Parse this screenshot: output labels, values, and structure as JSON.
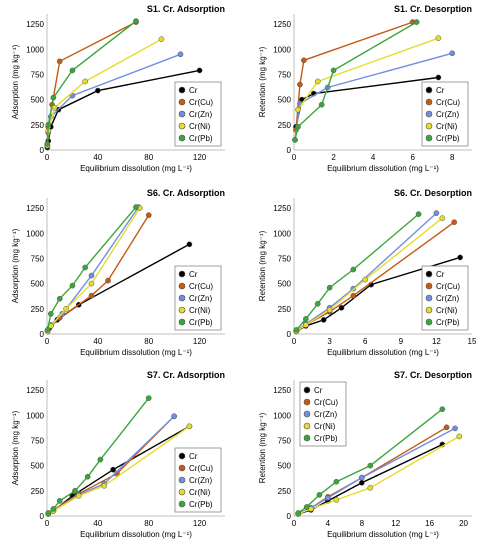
{
  "colors": {
    "Cr": "#000000",
    "Cr(Cu)": "#c55a11",
    "Cr(Zn)": "#6f8fe0",
    "Cr(Ni)": "#e6dc2a",
    "Cr(Pb)": "#3aa63a"
  },
  "chart_data": [
    {
      "type": "scatter",
      "title": "S1. Cr. Adsorption",
      "xlabel": "Equilibrium dissolution (mg L⁻¹)",
      "ylabel": "Adsorption (mg kg⁻¹)",
      "xlim": [
        0,
        140
      ],
      "ylim": [
        0,
        1350
      ],
      "xticks": [
        "0",
        "40",
        "80",
        "120"
      ],
      "yticks": [
        "0",
        "250",
        "500",
        "750",
        "1000",
        "1250"
      ],
      "legend": "inside-bottom-right",
      "series": [
        {
          "name": "Cr",
          "x": [
            0.3,
            1,
            3,
            9,
            40,
            120
          ],
          "y": [
            25,
            90,
            230,
            400,
            590,
            790
          ]
        },
        {
          "name": "Cr(Cu)",
          "x": [
            0.2,
            1,
            4,
            10,
            70
          ],
          "y": [
            50,
            230,
            450,
            880,
            1270
          ]
        },
        {
          "name": "Cr(Zn)",
          "x": [
            0.3,
            1,
            3,
            20,
            105
          ],
          "y": [
            40,
            170,
            330,
            540,
            950
          ]
        },
        {
          "name": "Cr(Ni)",
          "x": [
            0.3,
            1,
            6,
            30,
            90
          ],
          "y": [
            45,
            190,
            420,
            680,
            1100
          ]
        },
        {
          "name": "Cr(Pb)",
          "x": [
            0.2,
            1,
            5,
            20,
            70
          ],
          "y": [
            60,
            250,
            520,
            790,
            1280
          ]
        }
      ]
    },
    {
      "type": "scatter",
      "title": "S1. Cr. Desorption",
      "xlabel": "Equilibrium dissolution (mg L⁻¹)",
      "ylabel": "Retention (mg kg⁻¹)",
      "xlim": [
        0,
        9
      ],
      "ylim": [
        0,
        1350
      ],
      "xticks": [
        "0",
        "2",
        "4",
        "6",
        "8"
      ],
      "yticks": [
        "0",
        "250",
        "500",
        "750",
        "1000",
        "1250"
      ],
      "legend": "inside-bottom-right",
      "series": [
        {
          "name": "Cr",
          "x": [
            0.1,
            0.4,
            1.0,
            7.3
          ],
          "y": [
            230,
            500,
            560,
            720
          ]
        },
        {
          "name": "Cr(Cu)",
          "x": [
            0.1,
            0.3,
            0.5,
            6.0
          ],
          "y": [
            200,
            650,
            890,
            1270
          ]
        },
        {
          "name": "Cr(Zn)",
          "x": [
            0.05,
            0.3,
            1.7,
            8.0
          ],
          "y": [
            100,
            460,
            620,
            960
          ]
        },
        {
          "name": "Cr(Ni)",
          "x": [
            0.2,
            1.2,
            7.3
          ],
          "y": [
            400,
            680,
            1110
          ]
        },
        {
          "name": "Cr(Pb)",
          "x": [
            0.05,
            0.2,
            1.4,
            2.0,
            6.2
          ],
          "y": [
            100,
            230,
            450,
            790,
            1270
          ]
        }
      ]
    },
    {
      "type": "scatter",
      "title": "S6. Cr. Adsorption",
      "xlabel": "Equilibrium dissolution (mg L⁻¹)",
      "ylabel": "Adsorption (mg kg⁻¹)",
      "xlim": [
        0,
        140
      ],
      "ylim": [
        0,
        1350
      ],
      "xticks": [
        "0",
        "40",
        "80",
        "120"
      ],
      "yticks": [
        "0",
        "250",
        "500",
        "750",
        "1000",
        "1250"
      ],
      "legend": "inside-bottom-right",
      "series": [
        {
          "name": "Cr",
          "x": [
            0.5,
            2,
            8,
            25,
            112
          ],
          "y": [
            25,
            60,
            140,
            290,
            890
          ]
        },
        {
          "name": "Cr(Cu)",
          "x": [
            0.5,
            3,
            10,
            35,
            48,
            80
          ],
          "y": [
            30,
            80,
            160,
            380,
            530,
            1180
          ]
        },
        {
          "name": "Cr(Zn)",
          "x": [
            0.5,
            3,
            12,
            35,
            72
          ],
          "y": [
            30,
            90,
            200,
            580,
            1260
          ]
        },
        {
          "name": "Cr(Ni)",
          "x": [
            0.5,
            3,
            15,
            35,
            73
          ],
          "y": [
            25,
            80,
            250,
            500,
            1250
          ]
        },
        {
          "name": "Cr(Pb)",
          "x": [
            0.5,
            3,
            10,
            20,
            30,
            70
          ],
          "y": [
            40,
            200,
            350,
            480,
            660,
            1260
          ]
        }
      ]
    },
    {
      "type": "scatter",
      "title": "S6. Cr. Desorption",
      "xlabel": "Equilibrium dissolution (mg L⁻¹)",
      "ylabel": "Retention (mg kg⁻¹)",
      "xlim": [
        0,
        15
      ],
      "ylim": [
        0,
        1350
      ],
      "xticks": [
        "0",
        "3",
        "6",
        "9",
        "12",
        "15"
      ],
      "yticks": [
        "0",
        "250",
        "500",
        "750",
        "1000",
        "1250"
      ],
      "legend": "inside-bottom-right",
      "series": [
        {
          "name": "Cr",
          "x": [
            0.2,
            1.0,
            2.5,
            4.0,
            6.5,
            14.0
          ],
          "y": [
            25,
            80,
            140,
            260,
            490,
            760
          ]
        },
        {
          "name": "Cr(Cu)",
          "x": [
            0.2,
            1.0,
            3.0,
            5.0,
            13.5
          ],
          "y": [
            30,
            90,
            220,
            380,
            1110
          ]
        },
        {
          "name": "Cr(Zn)",
          "x": [
            0.2,
            1.0,
            3.0,
            5.0,
            12.0
          ],
          "y": [
            30,
            100,
            260,
            450,
            1200
          ]
        },
        {
          "name": "Cr(Ni)",
          "x": [
            0.2,
            1.0,
            3.0,
            6.0,
            12.5
          ],
          "y": [
            25,
            90,
            240,
            540,
            1150
          ]
        },
        {
          "name": "Cr(Pb)",
          "x": [
            0.2,
            1.0,
            2.0,
            3.0,
            5.0,
            10.5
          ],
          "y": [
            40,
            150,
            300,
            460,
            640,
            1190
          ]
        }
      ]
    },
    {
      "type": "scatter",
      "title": "S7. Cr. Adsorption",
      "xlabel": "Equilibrium dissolution (mg L⁻¹)",
      "ylabel": "Adsorption (mg kg⁻¹)",
      "xlim": [
        0,
        140
      ],
      "ylim": [
        0,
        1350
      ],
      "xticks": [
        "0",
        "40",
        "80",
        "120"
      ],
      "yticks": [
        "0",
        "250",
        "500",
        "750",
        "1000",
        "1250"
      ],
      "legend": "inside-bottom-right",
      "series": [
        {
          "name": "Cr",
          "x": [
            1,
            5,
            20,
            52,
            112
          ],
          "y": [
            20,
            50,
            200,
            460,
            890
          ]
        },
        {
          "name": "Cr(Cu)",
          "x": [
            1,
            5,
            25,
            55,
            100
          ],
          "y": [
            20,
            60,
            220,
            420,
            990
          ]
        },
        {
          "name": "Cr(Zn)",
          "x": [
            1,
            5,
            25,
            45,
            100
          ],
          "y": [
            20,
            50,
            210,
            320,
            990
          ]
        },
        {
          "name": "Cr(Ni)",
          "x": [
            1,
            5,
            25,
            45,
            112
          ],
          "y": [
            20,
            50,
            200,
            300,
            890
          ]
        },
        {
          "name": "Cr(Pb)",
          "x": [
            1,
            5,
            10,
            22,
            32,
            42,
            80
          ],
          "y": [
            30,
            70,
            150,
            250,
            390,
            560,
            1170
          ]
        }
      ]
    },
    {
      "type": "scatter",
      "title": "S7. Cr. Desorption",
      "xlabel": "Equilibrium dissolution (mg L⁻¹)",
      "ylabel": "Retention (mg kg⁻¹)",
      "xlim": [
        0,
        21
      ],
      "ylim": [
        0,
        1350
      ],
      "xticks": [
        "0",
        "4",
        "8",
        "12",
        "16",
        "20"
      ],
      "yticks": [
        "0",
        "250",
        "500",
        "750",
        "1000",
        "1250"
      ],
      "legend": "inside-top-left",
      "series": [
        {
          "name": "Cr",
          "x": [
            0.5,
            2,
            4,
            8,
            17.5
          ],
          "y": [
            20,
            60,
            150,
            330,
            710
          ]
        },
        {
          "name": "Cr(Cu)",
          "x": [
            0.5,
            2,
            4,
            8,
            18
          ],
          "y": [
            25,
            80,
            190,
            380,
            880
          ]
        },
        {
          "name": "Cr(Zn)",
          "x": [
            0.5,
            2,
            4,
            8,
            19
          ],
          "y": [
            25,
            80,
            180,
            380,
            870
          ]
        },
        {
          "name": "Cr(Ni)",
          "x": [
            0.5,
            2,
            5,
            9,
            19.5
          ],
          "y": [
            20,
            70,
            160,
            280,
            790
          ]
        },
        {
          "name": "Cr(Pb)",
          "x": [
            0.5,
            1.5,
            3,
            5,
            9,
            17.5
          ],
          "y": [
            30,
            90,
            210,
            340,
            500,
            1060
          ]
        }
      ]
    }
  ]
}
